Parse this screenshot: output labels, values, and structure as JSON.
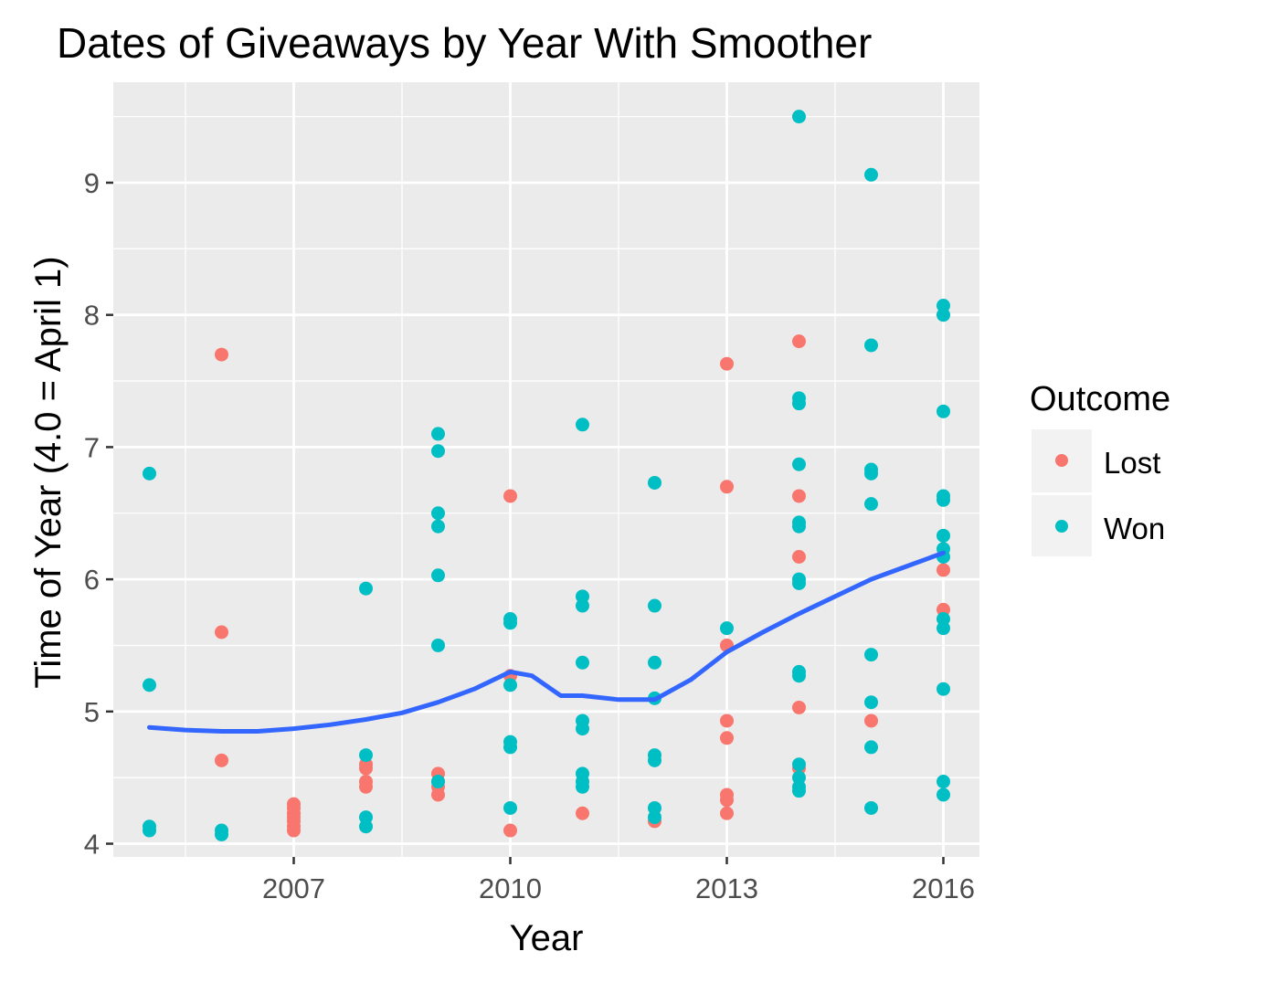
{
  "chart_data": {
    "type": "scatter",
    "title": "Dates of Giveaways by Year With Smoother",
    "xlabel": "Year",
    "ylabel": "Time of Year (4.0 = April 1)",
    "xlim": [
      2004.5,
      2016.5
    ],
    "ylim": [
      3.9,
      9.76
    ],
    "xticks": [
      2007,
      2010,
      2013,
      2016
    ],
    "yticks": [
      4,
      5,
      6,
      7,
      8,
      9
    ],
    "grid": true,
    "legend": {
      "title": "Outcome",
      "position": "right"
    },
    "colors": {
      "Lost": "#F8766D",
      "Won": "#00BFC4",
      "smoother": "#3366FF",
      "panel": "#EBEBEB",
      "grid": "#FFFFFF"
    },
    "series": [
      {
        "name": "Lost",
        "points": [
          [
            2006,
            7.7
          ],
          [
            2006,
            5.6
          ],
          [
            2006,
            4.63
          ],
          [
            2007,
            4.3
          ],
          [
            2007,
            4.27
          ],
          [
            2007,
            4.23
          ],
          [
            2007,
            4.2
          ],
          [
            2007,
            4.17
          ],
          [
            2007,
            4.13
          ],
          [
            2007,
            4.1
          ],
          [
            2008,
            4.6
          ],
          [
            2008,
            4.57
          ],
          [
            2008,
            4.47
          ],
          [
            2008,
            4.43
          ],
          [
            2009,
            4.53
          ],
          [
            2009,
            4.47
          ],
          [
            2009,
            4.43
          ],
          [
            2009,
            4.37
          ],
          [
            2010,
            6.63
          ],
          [
            2010,
            5.27
          ],
          [
            2010,
            4.1
          ],
          [
            2011,
            4.23
          ],
          [
            2012,
            4.17
          ],
          [
            2013,
            7.63
          ],
          [
            2013,
            6.7
          ],
          [
            2013,
            5.5
          ],
          [
            2013,
            4.93
          ],
          [
            2013,
            4.8
          ],
          [
            2013,
            4.37
          ],
          [
            2013,
            4.33
          ],
          [
            2013,
            4.23
          ],
          [
            2014,
            7.8
          ],
          [
            2014,
            6.63
          ],
          [
            2014,
            6.17
          ],
          [
            2014,
            5.03
          ],
          [
            2014,
            4.57
          ],
          [
            2015,
            4.93
          ],
          [
            2016,
            5.77
          ],
          [
            2016,
            6.07
          ]
        ]
      },
      {
        "name": "Won",
        "points": [
          [
            2005,
            6.8
          ],
          [
            2005,
            5.2
          ],
          [
            2005,
            4.13
          ],
          [
            2005,
            4.1
          ],
          [
            2006,
            4.1
          ],
          [
            2006,
            4.07
          ],
          [
            2008,
            5.93
          ],
          [
            2008,
            4.67
          ],
          [
            2008,
            4.2
          ],
          [
            2008,
            4.13
          ],
          [
            2009,
            7.1
          ],
          [
            2009,
            6.97
          ],
          [
            2009,
            6.5
          ],
          [
            2009,
            6.4
          ],
          [
            2009,
            6.03
          ],
          [
            2009,
            5.5
          ],
          [
            2009,
            4.47
          ],
          [
            2010,
            5.7
          ],
          [
            2010,
            5.67
          ],
          [
            2010,
            5.2
          ],
          [
            2010,
            4.77
          ],
          [
            2010,
            4.73
          ],
          [
            2010,
            4.27
          ],
          [
            2011,
            7.17
          ],
          [
            2011,
            5.87
          ],
          [
            2011,
            5.8
          ],
          [
            2011,
            5.37
          ],
          [
            2011,
            4.93
          ],
          [
            2011,
            4.87
          ],
          [
            2011,
            4.53
          ],
          [
            2011,
            4.47
          ],
          [
            2011,
            4.43
          ],
          [
            2012,
            6.73
          ],
          [
            2012,
            5.8
          ],
          [
            2012,
            5.37
          ],
          [
            2012,
            5.1
          ],
          [
            2012,
            4.67
          ],
          [
            2012,
            4.63
          ],
          [
            2012,
            4.27
          ],
          [
            2012,
            4.2
          ],
          [
            2013,
            5.63
          ],
          [
            2014,
            9.5
          ],
          [
            2014,
            7.37
          ],
          [
            2014,
            7.33
          ],
          [
            2014,
            6.87
          ],
          [
            2014,
            6.43
          ],
          [
            2014,
            6.4
          ],
          [
            2014,
            6.0
          ],
          [
            2014,
            5.97
          ],
          [
            2014,
            5.3
          ],
          [
            2014,
            5.27
          ],
          [
            2014,
            4.6
          ],
          [
            2014,
            4.5
          ],
          [
            2014,
            4.43
          ],
          [
            2014,
            4.4
          ],
          [
            2015,
            9.06
          ],
          [
            2015,
            7.77
          ],
          [
            2015,
            6.83
          ],
          [
            2015,
            6.8
          ],
          [
            2015,
            6.57
          ],
          [
            2015,
            5.43
          ],
          [
            2015,
            5.07
          ],
          [
            2015,
            4.73
          ],
          [
            2015,
            4.27
          ],
          [
            2016,
            8.07
          ],
          [
            2016,
            8.0
          ],
          [
            2016,
            7.27
          ],
          [
            2016,
            6.63
          ],
          [
            2016,
            6.6
          ],
          [
            2016,
            6.33
          ],
          [
            2016,
            6.23
          ],
          [
            2016,
            6.17
          ],
          [
            2016,
            5.7
          ],
          [
            2016,
            5.63
          ],
          [
            2016,
            5.17
          ],
          [
            2016,
            4.47
          ],
          [
            2016,
            4.37
          ]
        ]
      }
    ],
    "smoother": [
      [
        2005,
        4.88
      ],
      [
        2005.5,
        4.86
      ],
      [
        2006,
        4.85
      ],
      [
        2006.5,
        4.85
      ],
      [
        2007,
        4.87
      ],
      [
        2007.5,
        4.9
      ],
      [
        2008,
        4.94
      ],
      [
        2008.5,
        4.99
      ],
      [
        2009,
        5.07
      ],
      [
        2009.5,
        5.17
      ],
      [
        2010,
        5.3
      ],
      [
        2010.3,
        5.27
      ],
      [
        2010.7,
        5.12
      ],
      [
        2011,
        5.12
      ],
      [
        2011.5,
        5.09
      ],
      [
        2012,
        5.09
      ],
      [
        2012.5,
        5.24
      ],
      [
        2013,
        5.45
      ],
      [
        2013.5,
        5.6
      ],
      [
        2014,
        5.74
      ],
      [
        2014.5,
        5.87
      ],
      [
        2015,
        6.0
      ],
      [
        2015.5,
        6.1
      ],
      [
        2016,
        6.2
      ]
    ]
  }
}
